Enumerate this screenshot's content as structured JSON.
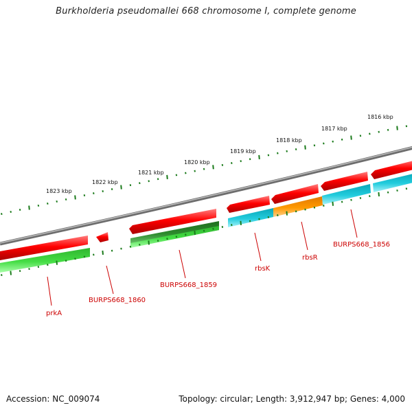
{
  "title": "Burkholderia pseudomallei 668 chromosome I, complete genome",
  "footer": {
    "accession": "Accession: NC_009074",
    "summary": "Topology: circular; Length: 3,912,947 bp; Genes: 4,000"
  },
  "scale_labels": [
    "1823 kbp",
    "1822 kbp",
    "1821 kbp",
    "1820 kbp",
    "1819 kbp",
    "1818 kbp",
    "1817 kbp",
    "1816 kbp"
  ],
  "gene_labels": [
    "prkA",
    "BURPS668_1860",
    "BURPS668_1859",
    "rbsK",
    "rbsR",
    "BURPS668_1856"
  ],
  "colors": {
    "forward_cds": "#ee1111",
    "reverse_green": "#33cc33",
    "reverse_darkgreen": "#2a8a2a",
    "reverse_cyan": "#11bbcc",
    "reverse_orange": "#ff8c00",
    "backbone": "#888888",
    "tick": "#1a7a1a",
    "label": "#cc0000"
  }
}
